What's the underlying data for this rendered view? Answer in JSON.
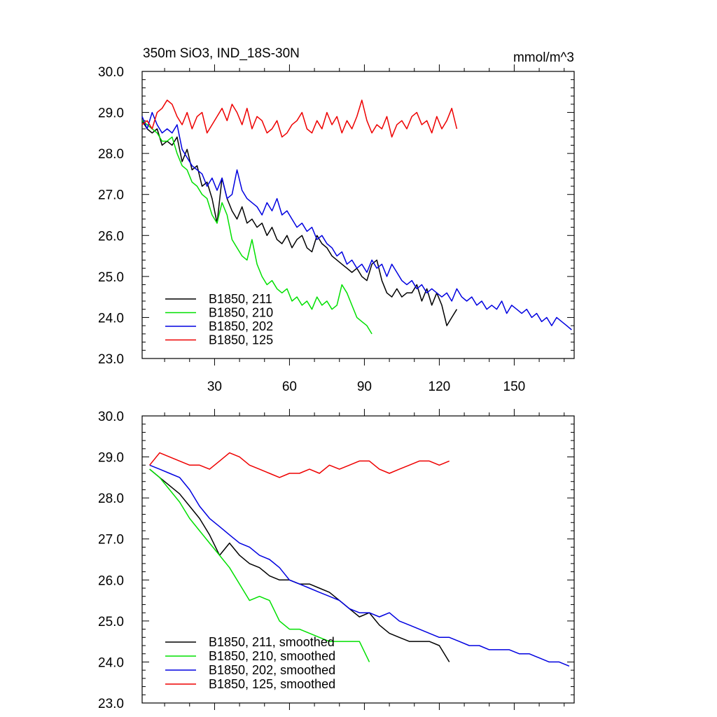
{
  "chart_data": [
    {
      "type": "line",
      "title": "350m SiO3, IND_18S-30N",
      "units": "mmol/m^3",
      "xlim": [
        1,
        174
      ],
      "ylim": [
        23,
        30
      ],
      "x_ticks": [
        30,
        60,
        90,
        120,
        150
      ],
      "y_ticks": [
        23,
        24,
        25,
        26,
        27,
        28,
        29,
        30
      ],
      "y_tick_labels": [
        "23.0",
        "24.0",
        "25.0",
        "26.0",
        "27.0",
        "28.0",
        "29.0",
        "30.0"
      ],
      "legend_position": "bottom-left",
      "series": [
        {
          "name": "B1850, 211",
          "color": "#000000",
          "x": [
            1,
            3,
            5,
            7,
            9,
            11,
            13,
            15,
            17,
            19,
            21,
            23,
            25,
            27,
            29,
            31,
            33,
            35,
            37,
            39,
            41,
            43,
            45,
            47,
            49,
            51,
            53,
            55,
            57,
            59,
            61,
            63,
            65,
            67,
            69,
            71,
            73,
            75,
            77,
            79,
            81,
            83,
            85,
            87,
            89,
            91,
            93,
            95,
            97,
            99,
            101,
            103,
            105,
            107,
            109,
            111,
            113,
            115,
            117,
            119,
            121,
            123,
            125,
            127
          ],
          "values": [
            28.8,
            28.6,
            28.5,
            28.6,
            28.2,
            28.3,
            28.2,
            28.4,
            27.8,
            28.1,
            27.6,
            27.7,
            27.2,
            27.3,
            26.9,
            26.3,
            27.4,
            26.9,
            26.6,
            26.4,
            26.7,
            26.3,
            26.4,
            26.2,
            26.3,
            26.0,
            26.2,
            25.9,
            25.8,
            26.0,
            25.7,
            25.9,
            26.0,
            25.7,
            25.6,
            26.0,
            25.8,
            25.7,
            25.5,
            25.4,
            25.3,
            25.2,
            25.1,
            25.2,
            25.0,
            24.9,
            25.3,
            25.4,
            24.9,
            24.6,
            24.5,
            24.7,
            24.5,
            24.6,
            24.6,
            24.8,
            24.4,
            24.7,
            24.3,
            24.6,
            24.3,
            23.8,
            24.0,
            24.2
          ]
        },
        {
          "name": "B1850, 210",
          "color": "#00e000",
          "x": [
            1,
            3,
            5,
            7,
            9,
            11,
            13,
            15,
            17,
            19,
            21,
            23,
            25,
            27,
            29,
            31,
            33,
            35,
            37,
            39,
            41,
            43,
            45,
            47,
            49,
            51,
            53,
            55,
            57,
            59,
            61,
            63,
            65,
            67,
            69,
            71,
            73,
            75,
            77,
            79,
            81,
            83,
            85,
            87,
            89,
            91,
            93
          ],
          "values": [
            28.8,
            28.7,
            28.6,
            28.5,
            28.3,
            28.3,
            28.4,
            28.0,
            27.7,
            27.6,
            27.3,
            27.2,
            27.0,
            26.9,
            26.5,
            26.3,
            26.8,
            26.5,
            25.9,
            25.7,
            25.5,
            25.4,
            25.9,
            25.3,
            25.0,
            24.8,
            24.9,
            24.7,
            24.6,
            24.7,
            24.4,
            24.5,
            24.3,
            24.4,
            24.2,
            24.5,
            24.3,
            24.4,
            24.2,
            24.3,
            24.8,
            24.6,
            24.3,
            24.0,
            23.9,
            23.8,
            23.6
          ]
        },
        {
          "name": "B1850, 202",
          "color": "#0000e0",
          "x": [
            1,
            3,
            5,
            7,
            9,
            11,
            13,
            15,
            17,
            19,
            21,
            23,
            25,
            27,
            29,
            31,
            33,
            35,
            37,
            39,
            41,
            43,
            45,
            47,
            49,
            51,
            53,
            55,
            57,
            59,
            61,
            63,
            65,
            67,
            69,
            71,
            73,
            75,
            77,
            79,
            81,
            83,
            85,
            87,
            89,
            91,
            93,
            95,
            97,
            99,
            101,
            103,
            105,
            107,
            109,
            111,
            113,
            115,
            117,
            119,
            121,
            123,
            125,
            127,
            129,
            131,
            133,
            135,
            137,
            139,
            141,
            143,
            145,
            147,
            149,
            151,
            153,
            155,
            157,
            159,
            161,
            163,
            165,
            167,
            169,
            171,
            173
          ],
          "values": [
            28.9,
            28.6,
            29.0,
            28.7,
            28.5,
            28.6,
            28.5,
            28.7,
            28.1,
            27.9,
            27.7,
            27.6,
            27.5,
            27.2,
            27.4,
            27.1,
            27.4,
            26.9,
            27.0,
            27.6,
            27.1,
            26.9,
            26.8,
            26.7,
            26.5,
            26.8,
            26.6,
            26.9,
            26.5,
            26.6,
            26.4,
            26.2,
            26.3,
            26.1,
            26.2,
            25.9,
            26.0,
            25.8,
            25.7,
            25.5,
            25.6,
            25.3,
            25.4,
            25.2,
            25.3,
            25.1,
            25.4,
            25.2,
            25.3,
            25.0,
            25.3,
            25.1,
            24.9,
            24.8,
            24.9,
            24.7,
            24.8,
            24.6,
            24.7,
            24.6,
            24.5,
            24.6,
            24.4,
            24.7,
            24.5,
            24.4,
            24.5,
            24.3,
            24.4,
            24.2,
            24.3,
            24.2,
            24.4,
            24.1,
            24.3,
            24.2,
            24.1,
            24.2,
            24.0,
            24.1,
            23.9,
            24.0,
            23.8,
            24.0,
            23.9,
            23.8,
            23.7
          ]
        },
        {
          "name": "B1850, 125",
          "color": "#ee0000",
          "x": [
            1,
            3,
            5,
            7,
            9,
            11,
            13,
            15,
            17,
            19,
            21,
            23,
            25,
            27,
            29,
            31,
            33,
            35,
            37,
            39,
            41,
            43,
            45,
            47,
            49,
            51,
            53,
            55,
            57,
            59,
            61,
            63,
            65,
            67,
            69,
            71,
            73,
            75,
            77,
            79,
            81,
            83,
            85,
            87,
            89,
            91,
            93,
            95,
            97,
            99,
            101,
            103,
            105,
            107,
            109,
            111,
            113,
            115,
            117,
            119,
            121,
            123,
            125,
            127
          ],
          "values": [
            28.7,
            28.8,
            28.6,
            29.0,
            29.1,
            29.3,
            29.2,
            28.9,
            28.7,
            29.0,
            28.6,
            28.9,
            29.0,
            28.5,
            28.7,
            28.9,
            29.1,
            28.8,
            29.2,
            29.0,
            28.7,
            29.1,
            28.6,
            28.9,
            28.8,
            28.5,
            28.6,
            28.8,
            28.4,
            28.5,
            28.7,
            28.8,
            29.0,
            28.6,
            28.5,
            28.8,
            28.6,
            29.0,
            28.7,
            28.9,
            28.5,
            28.8,
            28.6,
            28.9,
            29.3,
            28.8,
            28.5,
            28.7,
            28.6,
            28.9,
            28.4,
            28.7,
            28.8,
            28.6,
            28.9,
            29.0,
            28.7,
            28.8,
            28.5,
            28.9,
            28.6,
            28.8,
            29.1,
            28.6
          ]
        }
      ]
    },
    {
      "type": "line",
      "xlim": [
        1,
        174
      ],
      "ylim": [
        23,
        30
      ],
      "x_ticks": [
        30,
        60,
        90,
        120,
        150
      ],
      "y_ticks": [
        23,
        24,
        25,
        26,
        27,
        28,
        29,
        30
      ],
      "y_tick_labels": [
        "23.0",
        "24.0",
        "25.0",
        "26.0",
        "27.0",
        "28.0",
        "29.0",
        "30.0"
      ],
      "legend_position": "bottom-left",
      "series": [
        {
          "name": "B1850, 211, smoothed",
          "color": "#000000",
          "x": [
            4,
            8,
            12,
            16,
            20,
            24,
            28,
            32,
            36,
            40,
            44,
            48,
            52,
            56,
            60,
            64,
            68,
            72,
            76,
            80,
            84,
            88,
            92,
            96,
            100,
            104,
            108,
            112,
            116,
            120,
            124
          ],
          "values": [
            28.7,
            28.5,
            28.3,
            28.1,
            27.8,
            27.5,
            27.1,
            26.6,
            26.9,
            26.6,
            26.4,
            26.3,
            26.1,
            26.0,
            26.0,
            25.9,
            25.9,
            25.8,
            25.7,
            25.5,
            25.3,
            25.1,
            25.2,
            24.9,
            24.7,
            24.6,
            24.5,
            24.5,
            24.5,
            24.4,
            24.0
          ]
        },
        {
          "name": "B1850, 210, smoothed",
          "color": "#00e000",
          "x": [
            4,
            8,
            12,
            16,
            20,
            24,
            28,
            32,
            36,
            40,
            44,
            48,
            52,
            56,
            60,
            64,
            68,
            72,
            76,
            80,
            84,
            88,
            92
          ],
          "values": [
            28.7,
            28.5,
            28.2,
            27.9,
            27.5,
            27.2,
            26.9,
            26.6,
            26.3,
            25.9,
            25.5,
            25.6,
            25.5,
            25.0,
            24.8,
            24.8,
            24.7,
            24.6,
            24.5,
            24.5,
            24.5,
            24.5,
            24.0
          ]
        },
        {
          "name": "B1850, 202, smoothed",
          "color": "#0000e0",
          "x": [
            4,
            8,
            12,
            16,
            20,
            24,
            28,
            32,
            36,
            40,
            44,
            48,
            52,
            56,
            60,
            64,
            68,
            72,
            76,
            80,
            84,
            88,
            92,
            96,
            100,
            104,
            108,
            112,
            116,
            120,
            124,
            128,
            132,
            136,
            140,
            144,
            148,
            152,
            156,
            160,
            164,
            168,
            172
          ],
          "values": [
            28.8,
            28.7,
            28.6,
            28.5,
            28.2,
            27.8,
            27.5,
            27.3,
            27.1,
            26.9,
            26.8,
            26.6,
            26.5,
            26.3,
            26.0,
            25.9,
            25.8,
            25.7,
            25.6,
            25.5,
            25.3,
            25.2,
            25.2,
            25.1,
            25.2,
            25.0,
            24.9,
            24.8,
            24.7,
            24.6,
            24.6,
            24.5,
            24.4,
            24.4,
            24.3,
            24.3,
            24.3,
            24.2,
            24.2,
            24.1,
            24.0,
            24.0,
            23.9
          ]
        },
        {
          "name": "B1850, 125, smoothed",
          "color": "#ee0000",
          "x": [
            4,
            8,
            12,
            16,
            20,
            24,
            28,
            32,
            36,
            40,
            44,
            48,
            52,
            56,
            60,
            64,
            68,
            72,
            76,
            80,
            84,
            88,
            92,
            96,
            100,
            104,
            108,
            112,
            116,
            120,
            124
          ],
          "values": [
            28.8,
            29.1,
            29.0,
            28.9,
            28.8,
            28.8,
            28.7,
            28.9,
            29.1,
            29.0,
            28.8,
            28.7,
            28.6,
            28.5,
            28.6,
            28.6,
            28.7,
            28.6,
            28.8,
            28.7,
            28.8,
            28.9,
            28.9,
            28.7,
            28.6,
            28.7,
            28.8,
            28.9,
            28.9,
            28.8,
            28.9
          ]
        }
      ]
    }
  ]
}
